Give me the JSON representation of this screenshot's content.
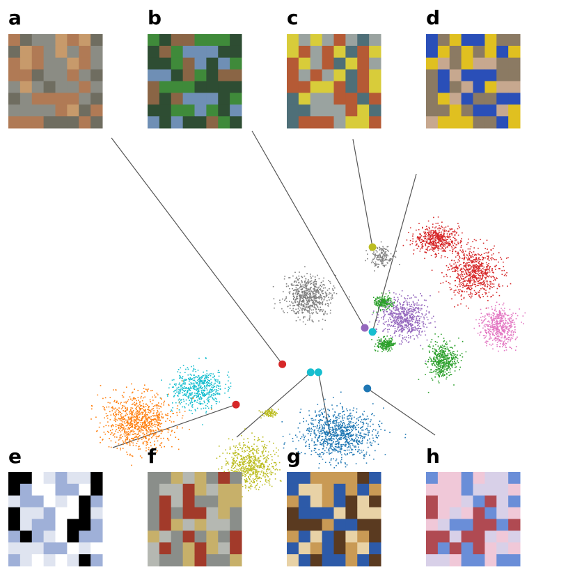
{
  "chart_data": {
    "type": "scatter",
    "title": "",
    "xlabel": "",
    "ylabel": "",
    "grid": false,
    "legend": "none",
    "axes_visible": false,
    "clusters": [
      {
        "color": "#d62728",
        "center": [
          0.72,
          -0.08
        ],
        "spread": [
          0.09,
          0.11
        ],
        "count": 700
      },
      {
        "color": "#d62728",
        "center": [
          0.58,
          -0.24
        ],
        "spread": [
          0.08,
          0.06
        ],
        "count": 500
      },
      {
        "color": "#7f7f7f",
        "center": [
          0.08,
          0.04
        ],
        "spread": [
          0.08,
          0.09
        ],
        "count": 650
      },
      {
        "color": "#7f7f7f",
        "center": [
          0.36,
          -0.15
        ],
        "spread": [
          0.04,
          0.05
        ],
        "count": 150
      },
      {
        "color": "#2ca02c",
        "center": [
          0.37,
          0.07
        ],
        "spread": [
          0.03,
          0.03
        ],
        "count": 200
      },
      {
        "color": "#9467bd",
        "center": [
          0.45,
          0.15
        ],
        "spread": [
          0.08,
          0.09
        ],
        "count": 600
      },
      {
        "color": "#e377c2",
        "center": [
          0.82,
          0.19
        ],
        "spread": [
          0.06,
          0.09
        ],
        "count": 500
      },
      {
        "color": "#2ca02c",
        "center": [
          0.38,
          0.28
        ],
        "spread": [
          0.03,
          0.03
        ],
        "count": 200
      },
      {
        "color": "#2ca02c",
        "center": [
          0.6,
          0.36
        ],
        "spread": [
          0.05,
          0.08
        ],
        "count": 450
      },
      {
        "color": "#17becf",
        "center": [
          -0.35,
          0.5
        ],
        "spread": [
          0.09,
          0.09
        ],
        "count": 550
      },
      {
        "color": "#ff7f0e",
        "center": [
          -0.58,
          0.66
        ],
        "spread": [
          0.12,
          0.12
        ],
        "count": 900
      },
      {
        "color": "#bcbd22",
        "center": [
          -0.15,
          0.88
        ],
        "spread": [
          0.09,
          0.1
        ],
        "count": 650
      },
      {
        "color": "#bcbd22",
        "center": [
          -0.07,
          0.62
        ],
        "spread": [
          0.03,
          0.02
        ],
        "count": 90
      },
      {
        "color": "#1f77b4",
        "center": [
          0.2,
          0.72
        ],
        "spread": [
          0.13,
          0.11
        ],
        "count": 900
      }
    ],
    "highlighted_points": [
      {
        "label": "a",
        "x": -0.02,
        "y": 0.38,
        "color": "#d62728"
      },
      {
        "label": "b",
        "x": 0.3,
        "y": 0.2,
        "color": "#9467bd"
      },
      {
        "label": "c",
        "x": 0.33,
        "y": -0.2,
        "color": "#bcbd22"
      },
      {
        "label": "d",
        "x": 0.33,
        "y": 0.22,
        "color": "#17becf"
      },
      {
        "label": "e",
        "x": -0.2,
        "y": 0.58,
        "color": "#d62728"
      },
      {
        "label": "f",
        "x": 0.09,
        "y": 0.42,
        "color": "#17becf"
      },
      {
        "label": "g",
        "x": 0.12,
        "y": 0.42,
        "color": "#17becf"
      },
      {
        "label": "h",
        "x": 0.31,
        "y": 0.5,
        "color": "#1f77b4"
      }
    ]
  },
  "panels": [
    {
      "label": "a",
      "image": "cat-on-brick-thumbnail",
      "colors": [
        "#b07a55",
        "#8b8c84",
        "#c79a6b",
        "#6f6d60"
      ]
    },
    {
      "label": "b",
      "image": "person-in-water-thumbnail",
      "colors": [
        "#3f8a3a",
        "#6f8fb5",
        "#8a6545",
        "#2e4d33"
      ]
    },
    {
      "label": "c",
      "image": "jetski-rider-thumbnail",
      "colors": [
        "#d8cc3a",
        "#4e6f78",
        "#b55a35",
        "#9aa3a0"
      ]
    },
    {
      "label": "d",
      "image": "dump-truck-thumbnail",
      "colors": [
        "#2a4fb8",
        "#c7a88f",
        "#e0c020",
        "#8b7a63"
      ]
    },
    {
      "label": "e",
      "image": "cat-silhouette-on-fence-thumbnail",
      "colors": [
        "#000000",
        "#dfe4f0",
        "#9fb0d8",
        "#ffffff"
      ]
    },
    {
      "label": "f",
      "image": "vintage-car-grille-thumbnail",
      "colors": [
        "#8a8e8a",
        "#c7b06a",
        "#b5b8b2",
        "#a23a2a"
      ]
    },
    {
      "label": "g",
      "image": "blue-truck-in-garage-thumbnail",
      "colors": [
        "#2d5aa8",
        "#5a3a20",
        "#e8d2a6",
        "#c99a55"
      ]
    },
    {
      "label": "h",
      "image": "airplane-in-pink-sky-thumbnail",
      "colors": [
        "#6a8ed8",
        "#f0c8d8",
        "#b04a52",
        "#d8d0e8"
      ]
    }
  ]
}
